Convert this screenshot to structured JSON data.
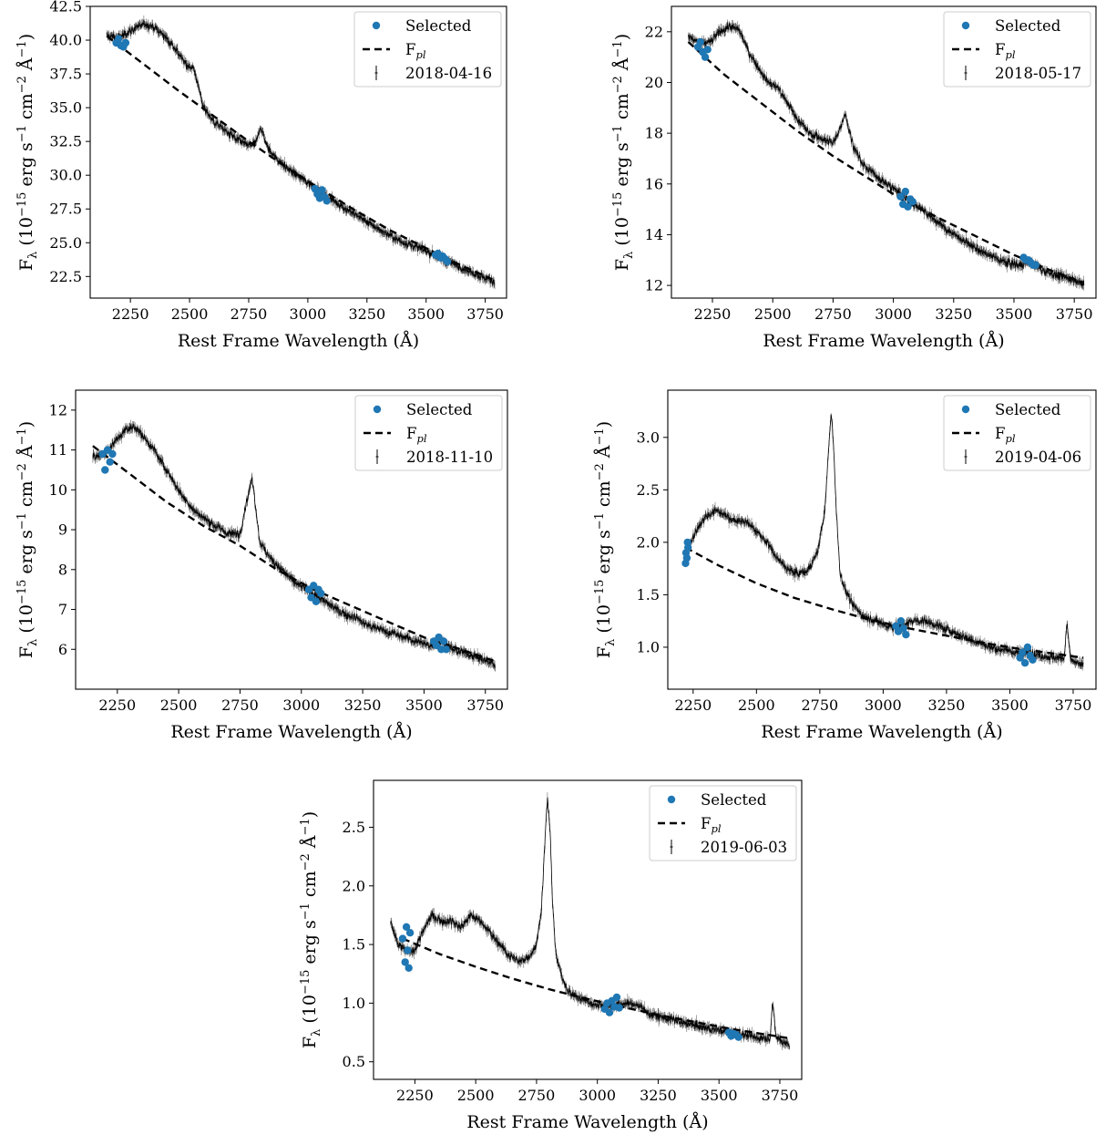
{
  "figure": {
    "legend_labels": {
      "selected": "Selected",
      "fit_main": "F",
      "fit_sub": "pl"
    }
  },
  "colors": {
    "selected": "#1f77b4",
    "spectrum": "#000000",
    "fit": "#000000"
  },
  "chart_data": [
    {
      "type": "line",
      "epoch": "2018-04-16",
      "xlabel": "Rest Frame Wavelength (Å)",
      "ylabel": "F_λ (10^-15 erg s^-1 cm^-2 Å^-1)",
      "xlim": [
        2080,
        3840
      ],
      "ylim": [
        20.9,
        42.5
      ],
      "xticks": [
        2250,
        2500,
        2750,
        3000,
        3250,
        3500,
        3750
      ],
      "yticks": [
        22.5,
        25.0,
        27.5,
        30.0,
        32.5,
        35.0,
        37.5,
        40.0,
        42.5
      ],
      "legend_loc": "upper right",
      "spectrum": {
        "x": [
          2150,
          2200,
          2240,
          2280,
          2320,
          2360,
          2400,
          2440,
          2480,
          2520,
          2560,
          2600,
          2650,
          2700,
          2750,
          2780,
          2800,
          2830,
          2870,
          2920,
          2970,
          3020,
          3070,
          3120,
          3170,
          3220,
          3270,
          3320,
          3370,
          3420,
          3470,
          3520,
          3570,
          3620,
          3670,
          3720,
          3790
        ],
        "y": [
          40.3,
          40.2,
          40.6,
          41.0,
          41.2,
          40.8,
          40.2,
          39.4,
          38.3,
          37.8,
          35.0,
          34.0,
          33.3,
          32.6,
          32.2,
          32.3,
          33.6,
          32.0,
          31.2,
          30.4,
          29.8,
          29.2,
          28.5,
          28.0,
          27.4,
          26.9,
          26.3,
          25.8,
          25.3,
          24.9,
          24.6,
          24.2,
          23.8,
          23.4,
          23.0,
          22.6,
          22.1
        ]
      },
      "fit": {
        "x": [
          2150,
          2300,
          2450,
          2600,
          2750,
          2900,
          3050,
          3200,
          3350,
          3500,
          3650,
          3790
        ],
        "y": [
          40.3,
          38.3,
          36.3,
          34.4,
          32.5,
          30.7,
          29.0,
          27.4,
          25.9,
          24.6,
          23.3,
          22.2
        ]
      },
      "selected": {
        "x": [
          2190,
          2200,
          2210,
          2220,
          2230,
          3030,
          3040,
          3050,
          3060,
          3070,
          3080,
          3540,
          3550,
          3560,
          3570,
          3580,
          3590
        ],
        "y": [
          39.8,
          40.1,
          39.6,
          39.5,
          39.8,
          29.0,
          28.6,
          28.3,
          28.9,
          28.4,
          28.1,
          24.1,
          24.2,
          23.9,
          24.0,
          23.8,
          23.6
        ]
      }
    },
    {
      "type": "line",
      "epoch": "2018-05-17",
      "xlabel": "Rest Frame Wavelength (Å)",
      "ylabel": "F_λ (10^-15 erg s^-1 cm^-2 Å^-1)",
      "xlim": [
        2080,
        3840
      ],
      "ylim": [
        11.5,
        23.0
      ],
      "xticks": [
        2250,
        2500,
        2750,
        3000,
        3250,
        3500,
        3750
      ],
      "yticks": [
        12,
        14,
        16,
        18,
        20,
        22
      ],
      "legend_loc": "upper right",
      "spectrum": {
        "x": [
          2150,
          2200,
          2240,
          2280,
          2320,
          2360,
          2400,
          2440,
          2480,
          2520,
          2560,
          2600,
          2650,
          2700,
          2750,
          2780,
          2800,
          2830,
          2870,
          2920,
          2970,
          3020,
          3070,
          3120,
          3170,
          3220,
          3270,
          3320,
          3370,
          3420,
          3470,
          3520,
          3570,
          3620,
          3670,
          3720,
          3790
        ],
        "y": [
          21.8,
          21.5,
          21.6,
          22.0,
          22.2,
          22.1,
          21.2,
          20.6,
          20.0,
          19.8,
          19.2,
          18.6,
          18.0,
          17.8,
          17.6,
          18.2,
          18.8,
          17.6,
          16.8,
          16.4,
          16.0,
          15.7,
          15.3,
          15.0,
          14.6,
          14.2,
          13.9,
          13.6,
          13.3,
          13.1,
          12.9,
          12.8,
          12.9,
          12.6,
          12.4,
          12.3,
          12.1
        ]
      },
      "fit": {
        "x": [
          2150,
          2300,
          2450,
          2600,
          2750,
          2900,
          3050,
          3200,
          3350,
          3500,
          3650,
          3790
        ],
        "y": [
          21.6,
          20.3,
          19.2,
          18.1,
          17.1,
          16.2,
          15.3,
          14.6,
          13.9,
          13.2,
          12.6,
          12.1
        ]
      },
      "selected": {
        "x": [
          2190,
          2200,
          2210,
          2220,
          2230,
          3030,
          3040,
          3050,
          3060,
          3070,
          3080,
          3540,
          3550,
          3560,
          3570,
          3580,
          3590
        ],
        "y": [
          21.4,
          21.6,
          21.2,
          21.0,
          21.3,
          15.5,
          15.2,
          15.7,
          15.1,
          15.4,
          15.3,
          13.1,
          13.0,
          13.0,
          12.9,
          12.8,
          12.8
        ]
      }
    },
    {
      "type": "line",
      "epoch": "2018-11-10",
      "xlabel": "Rest Frame Wavelength (Å)",
      "ylabel": "F_λ (10^-15 erg s^-1 cm^-2 Å^-1)",
      "xlim": [
        2080,
        3840
      ],
      "ylim": [
        5.0,
        12.5
      ],
      "xticks": [
        2250,
        2500,
        2750,
        3000,
        3250,
        3500,
        3750
      ],
      "yticks": [
        6,
        7,
        8,
        9,
        10,
        11,
        12
      ],
      "legend_loc": "upper right",
      "spectrum": {
        "x": [
          2150,
          2200,
          2240,
          2280,
          2320,
          2360,
          2400,
          2440,
          2480,
          2520,
          2560,
          2600,
          2650,
          2700,
          2750,
          2780,
          2800,
          2830,
          2870,
          2920,
          2970,
          3020,
          3070,
          3120,
          3170,
          3220,
          3270,
          3320,
          3370,
          3420,
          3470,
          3520,
          3570,
          3620,
          3670,
          3720,
          3790
        ],
        "y": [
          10.8,
          10.9,
          11.2,
          11.5,
          11.6,
          11.3,
          11.0,
          10.6,
          10.2,
          9.8,
          9.5,
          9.3,
          9.1,
          8.9,
          8.9,
          9.8,
          10.3,
          8.7,
          8.3,
          8.0,
          7.7,
          7.5,
          7.3,
          7.1,
          6.9,
          6.8,
          6.6,
          6.5,
          6.4,
          6.3,
          6.2,
          6.1,
          6.2,
          6.0,
          5.9,
          5.8,
          5.6
        ]
      },
      "fit": {
        "x": [
          2150,
          2300,
          2450,
          2600,
          2750,
          2900,
          3050,
          3200,
          3350,
          3500,
          3650,
          3790
        ],
        "y": [
          11.1,
          10.4,
          9.7,
          9.1,
          8.6,
          8.0,
          7.5,
          7.1,
          6.7,
          6.3,
          6.0,
          5.7
        ]
      },
      "selected": {
        "x": [
          2190,
          2200,
          2210,
          2220,
          2230,
          3030,
          3040,
          3050,
          3060,
          3070,
          3080,
          3540,
          3550,
          3560,
          3570,
          3580,
          3590
        ],
        "y": [
          10.9,
          10.5,
          11.0,
          10.7,
          10.9,
          7.5,
          7.3,
          7.6,
          7.2,
          7.5,
          7.4,
          6.2,
          6.1,
          6.3,
          6.0,
          6.2,
          6.0
        ]
      }
    },
    {
      "type": "line",
      "epoch": "2019-04-06",
      "xlabel": "Rest Frame Wavelength (Å)",
      "ylabel": "F_λ (10^-15 erg s^-1 cm^-2 Å^-1)",
      "xlim": [
        2150,
        3840
      ],
      "ylim": [
        0.6,
        3.45
      ],
      "xticks": [
        2250,
        2500,
        2750,
        3000,
        3250,
        3500,
        3750
      ],
      "yticks": [
        1.0,
        1.5,
        2.0,
        2.5,
        3.0
      ],
      "legend_loc": "upper right",
      "spectrum": {
        "x": [
          2220,
          2240,
          2270,
          2300,
          2340,
          2380,
          2420,
          2460,
          2500,
          2540,
          2580,
          2620,
          2660,
          2700,
          2740,
          2770,
          2785,
          2795,
          2805,
          2815,
          2830,
          2850,
          2880,
          2920,
          2970,
          3020,
          3070,
          3120,
          3170,
          3220,
          3270,
          3320,
          3370,
          3420,
          3470,
          3520,
          3570,
          3620,
          3670,
          3715,
          3725,
          3740,
          3790
        ],
        "y": [
          1.8,
          2.0,
          2.15,
          2.25,
          2.3,
          2.25,
          2.2,
          2.2,
          2.1,
          2.0,
          1.85,
          1.75,
          1.7,
          1.72,
          1.9,
          2.3,
          2.9,
          3.25,
          2.9,
          2.3,
          1.7,
          1.55,
          1.4,
          1.3,
          1.25,
          1.2,
          1.2,
          1.25,
          1.25,
          1.2,
          1.15,
          1.1,
          1.05,
          1.0,
          0.98,
          0.95,
          0.95,
          0.92,
          0.9,
          0.9,
          1.25,
          0.88,
          0.82
        ]
      },
      "fit": {
        "x": [
          2220,
          2350,
          2500,
          2650,
          2800,
          2950,
          3100,
          3250,
          3400,
          3550,
          3700,
          3790
        ],
        "y": [
          1.95,
          1.78,
          1.61,
          1.47,
          1.36,
          1.26,
          1.18,
          1.11,
          1.04,
          0.98,
          0.93,
          0.9
        ]
      },
      "selected": {
        "x": [
          2220,
          2222,
          2225,
          2228,
          2230,
          3050,
          3060,
          3070,
          3080,
          3090,
          3540,
          3550,
          3560,
          3570,
          3580,
          3590
        ],
        "y": [
          1.8,
          1.9,
          1.85,
          2.0,
          1.95,
          1.2,
          1.15,
          1.25,
          1.18,
          1.12,
          0.9,
          0.95,
          0.85,
          1.0,
          0.92,
          0.88
        ]
      }
    },
    {
      "type": "line",
      "epoch": "2019-06-03",
      "xlabel": "Rest Frame Wavelength (Å)",
      "ylabel": "F_λ (10^-15 erg s^-1 cm^-2 Å^-1)",
      "xlim": [
        2080,
        3840
      ],
      "ylim": [
        0.35,
        2.9
      ],
      "xticks": [
        2250,
        2500,
        2750,
        3000,
        3250,
        3500,
        3750
      ],
      "yticks": [
        0.5,
        1.0,
        1.5,
        2.0,
        2.5
      ],
      "legend_loc": "upper right",
      "spectrum": {
        "x": [
          2150,
          2180,
          2210,
          2250,
          2280,
          2320,
          2360,
          2400,
          2440,
          2480,
          2520,
          2560,
          2600,
          2640,
          2680,
          2720,
          2750,
          2770,
          2785,
          2795,
          2805,
          2815,
          2830,
          2850,
          2880,
          2920,
          2970,
          3020,
          3070,
          3120,
          3170,
          3220,
          3270,
          3320,
          3370,
          3420,
          3470,
          3520,
          3570,
          3620,
          3670,
          3710,
          3720,
          3735,
          3790
        ],
        "y": [
          1.7,
          1.5,
          1.45,
          1.45,
          1.6,
          1.75,
          1.7,
          1.7,
          1.65,
          1.75,
          1.7,
          1.6,
          1.5,
          1.4,
          1.35,
          1.4,
          1.5,
          1.8,
          2.4,
          2.75,
          2.5,
          1.9,
          1.4,
          1.25,
          1.1,
          1.05,
          1.0,
          0.98,
          0.98,
          1.0,
          0.98,
          0.9,
          0.88,
          0.85,
          0.82,
          0.8,
          0.78,
          0.76,
          0.75,
          0.72,
          0.7,
          0.7,
          1.0,
          0.7,
          0.65
        ]
      },
      "fit": {
        "x": [
          2200,
          2350,
          2500,
          2650,
          2800,
          2950,
          3100,
          3250,
          3400,
          3550,
          3700,
          3790
        ],
        "y": [
          1.55,
          1.42,
          1.31,
          1.21,
          1.12,
          1.04,
          0.97,
          0.9,
          0.84,
          0.78,
          0.73,
          0.7
        ]
      },
      "selected": {
        "x": [
          2200,
          2210,
          2215,
          2220,
          2225,
          2230,
          3030,
          3040,
          3050,
          3060,
          3070,
          3080,
          3090,
          3540,
          3550,
          3560,
          3570,
          3580
        ],
        "y": [
          1.55,
          1.35,
          1.65,
          1.45,
          1.3,
          1.6,
          0.95,
          1.0,
          0.92,
          1.02,
          0.97,
          1.05,
          0.96,
          0.75,
          0.72,
          0.74,
          0.73,
          0.71
        ]
      }
    }
  ]
}
